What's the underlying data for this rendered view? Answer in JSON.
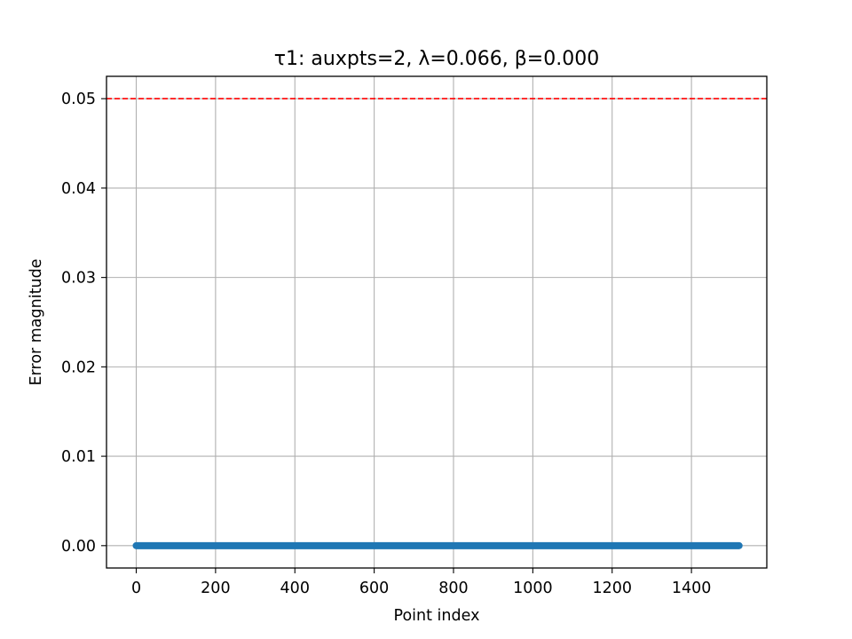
{
  "chart_data": {
    "type": "scatter",
    "title": "τ1: auxpts=2, λ=0.066, β=0.000",
    "xlabel": "Point index",
    "ylabel": "Error magnitude",
    "xlim": [
      -75,
      1590
    ],
    "ylim": [
      -0.0025,
      0.0525
    ],
    "xticks": [
      0,
      200,
      400,
      600,
      800,
      1000,
      1200,
      1400
    ],
    "xtick_labels": [
      "0",
      "200",
      "400",
      "600",
      "800",
      "1000",
      "1200",
      "1400"
    ],
    "yticks": [
      0.0,
      0.01,
      0.02,
      0.03,
      0.04,
      0.05
    ],
    "ytick_labels": [
      "0.00",
      "0.01",
      "0.02",
      "0.03",
      "0.04",
      "0.05"
    ],
    "grid": true,
    "series": [
      {
        "color": "#1f77b4",
        "x_start": 0,
        "x_end": 1520,
        "y_value": 0.0
      }
    ],
    "reference_line": {
      "orientation": "horizontal",
      "y": 0.05,
      "color": "#ff0000",
      "style": "dashed"
    }
  }
}
